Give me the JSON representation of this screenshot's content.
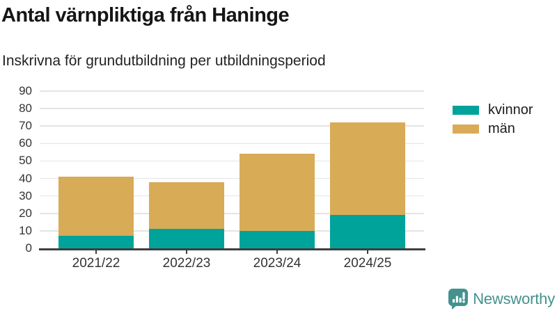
{
  "chart_data": {
    "type": "bar",
    "stacked": true,
    "title": "Antal värnpliktiga från Haninge",
    "subtitle": "Inskrivna för grundutbildning per utbildningsperiod",
    "categories": [
      "2021/22",
      "2022/23",
      "2023/24",
      "2024/25"
    ],
    "series": [
      {
        "name": "kvinnor",
        "color": "#00a39a",
        "values": [
          7,
          11,
          10,
          19
        ]
      },
      {
        "name": "män",
        "color": "#d8ab57",
        "values": [
          34,
          27,
          44,
          53
        ]
      }
    ],
    "stack_totals": [
      41,
      38,
      54,
      72
    ],
    "xlabel": "",
    "ylabel": "",
    "ylim": [
      0,
      90
    ],
    "yticks": [
      0,
      10,
      20,
      30,
      40,
      50,
      60,
      70,
      80,
      90
    ],
    "grid": true,
    "legend_position": "right"
  },
  "branding": {
    "logo_text": "Newsworthy",
    "logo_color": "#43928e",
    "logo_icon": "bar-chart-speech-bubble"
  },
  "style": {
    "grid_color": "#e4e4e4",
    "axis_color": "#3e3e3e",
    "label_color": "#333333"
  }
}
